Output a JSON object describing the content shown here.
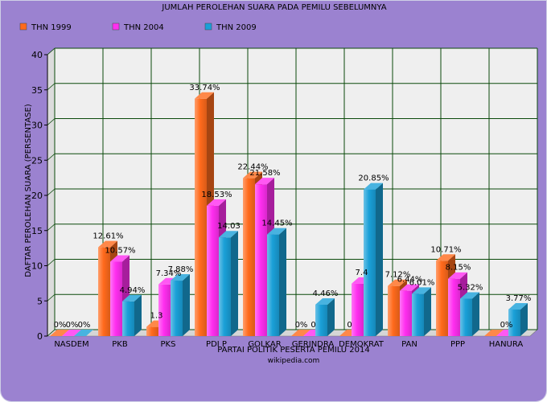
{
  "colors": {
    "background": "#9b82d0",
    "plot_background": "#efefef",
    "grid": "#0b4a0b",
    "series": [
      "#ff6a1c",
      "#ff2ef0",
      "#1aa0d8"
    ]
  },
  "chart_data": {
    "type": "bar",
    "title": "JUMLAH PEROLEHAN SUARA PADA PEMILU SEBELUMNYA",
    "xlabel": "PARTAI POLITIK PESERTA PEMILU 2014",
    "ylabel": "DAFTAR PEROLEHAN SUARA (PERSENTASE)",
    "source": "wikipedia.com",
    "ylim": [
      0,
      40
    ],
    "yticks": [
      "0",
      "5",
      "10",
      "15",
      "20",
      "25",
      "30",
      "35",
      "40"
    ],
    "grid": true,
    "legend_position": "top-left",
    "categories": [
      "NASDEM",
      "PKB",
      "PKS",
      "PDI P",
      "GOLKAR",
      "GERINDRA",
      "DEMOKRAT",
      "PAN",
      "PPP",
      "HANURA"
    ],
    "series": [
      {
        "name": "THN 1999",
        "values": [
          0,
          12.61,
          1.3,
          33.74,
          22.44,
          0,
          0,
          7.12,
          10.71,
          0
        ],
        "labels": [
          "0%",
          "12.61%",
          "1.3",
          "33.74%",
          "22.44%",
          "0%",
          "0",
          "7.12%",
          "10.71%",
          ""
        ]
      },
      {
        "name": "THN 2004",
        "values": [
          0,
          10.57,
          7.34,
          18.53,
          21.58,
          0,
          7.45,
          6.44,
          8.15,
          0
        ],
        "labels": [
          "0%",
          "10.57%",
          "7.34%",
          "18.53%",
          "21.58%",
          "0",
          "7.4",
          "6.44%",
          "8.15%",
          "0%"
        ]
      },
      {
        "name": "THN 2009",
        "values": [
          0,
          4.94,
          7.88,
          14.03,
          14.45,
          4.46,
          20.85,
          6.01,
          5.32,
          3.77
        ],
        "labels": [
          "0%",
          "4.94%",
          "7.88%",
          "14.03",
          "14.45%",
          "4.46%",
          "20.85%",
          "6.01%",
          "5.32%",
          "3.77%"
        ]
      }
    ]
  }
}
